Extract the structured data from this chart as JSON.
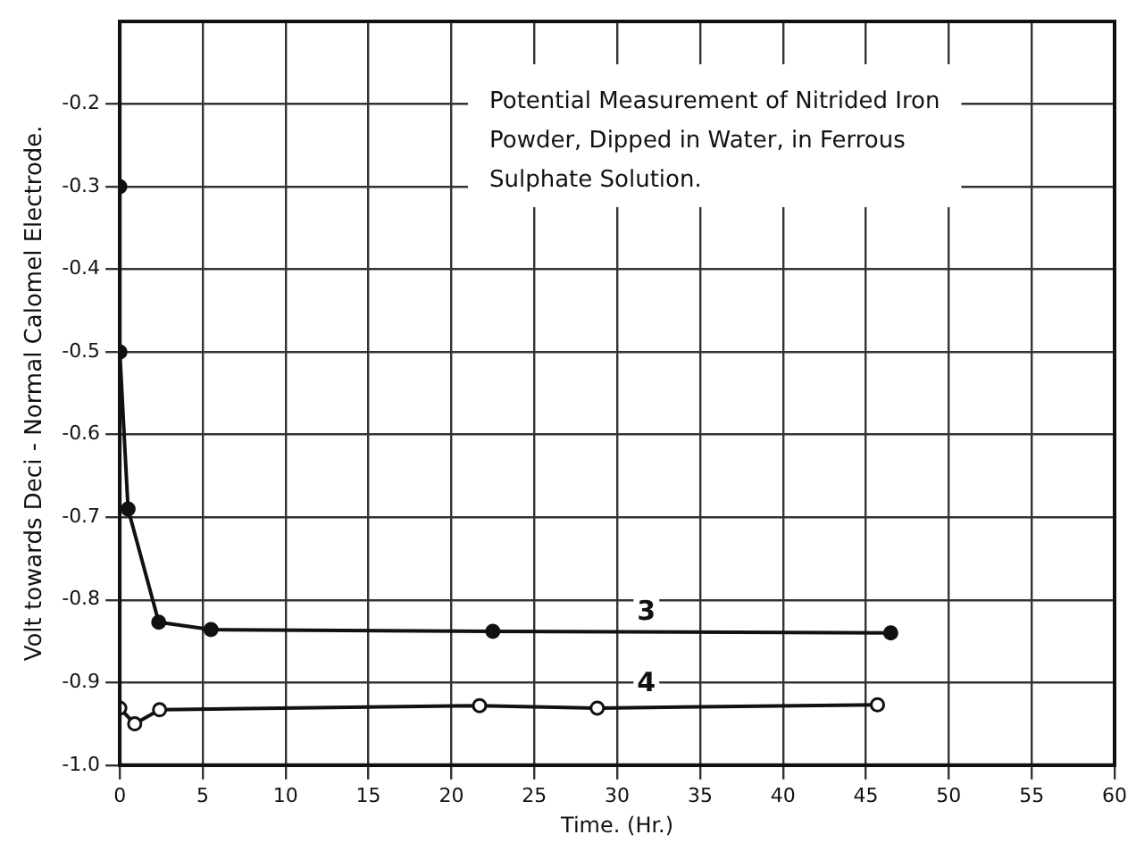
{
  "chart_data": {
    "type": "line",
    "title": "Potential Measurement of Nitrided Iron Powder, Dipped in Water, in Ferrous Sulphate Solution.",
    "xlabel": "Time. (Hr.)",
    "ylabel": "Volt towards Deci - Normal Calomel Electrode.",
    "series": [
      {
        "name": "3",
        "color": "#111111",
        "marker": "circle",
        "x": [
          0,
          0,
          0.5,
          2.35,
          5.5,
          22.5,
          46.5
        ],
        "values": [
          -0.3,
          -0.5,
          -0.69,
          -0.827,
          -0.836,
          -0.838,
          -0.84
        ]
      },
      {
        "name": "4",
        "color": "#111111",
        "marker": "circle_open",
        "x": [
          0,
          0.9,
          2.4,
          21.7,
          28.8,
          45.7
        ],
        "values": [
          -0.931,
          -0.95,
          -0.933,
          -0.928,
          -0.931,
          -0.927
        ]
      }
    ],
    "xlim": [
      0,
      60
    ],
    "xticks": [
      0,
      5,
      10,
      15,
      20,
      25,
      30,
      35,
      40,
      45,
      50,
      55,
      60
    ],
    "ylim": [
      -1.0,
      -0.1
    ],
    "yticks": [
      -0.2,
      -0.3,
      -0.4,
      -0.5,
      -0.6,
      -0.7,
      -0.8,
      -0.9,
      {
        "value": -1.0,
        "label": "-1.0"
      }
    ],
    "grid": true,
    "legend": false
  }
}
